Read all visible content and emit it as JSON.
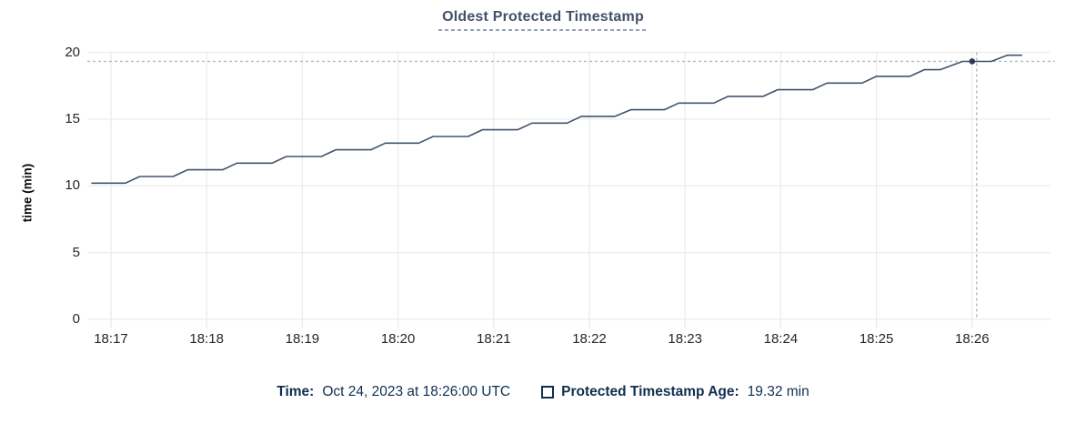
{
  "title": "Oldest Protected Timestamp",
  "y_axis": {
    "label": "time (min)",
    "ticks": [
      "20",
      "15",
      "10",
      "5",
      "0"
    ]
  },
  "x_axis": {
    "ticks": [
      "18:17",
      "18:18",
      "18:19",
      "18:20",
      "18:21",
      "18:22",
      "18:23",
      "18:24",
      "18:25",
      "18:26"
    ]
  },
  "footer": {
    "time_label": "Time:",
    "time_value": "Oct 24, 2023 at 18:26:00 UTC",
    "series_label": "Protected Timestamp Age:",
    "series_value": "19.32 min"
  },
  "colors": {
    "background": "#ffffff",
    "title": "#44506a",
    "title_underline": "#97a2b4",
    "grid": "#ececec",
    "tick_text": "#262626",
    "line": "#43536b",
    "dot": "#2b3a52",
    "crosshair": "#a9bcc7",
    "footer_text": "#0f2f50"
  },
  "chart_data": {
    "type": "line",
    "title": "Oldest Protected Timestamp",
    "xlabel": "",
    "ylabel": "time (min)",
    "ylim": [
      0,
      20
    ],
    "y_ticks": [
      0,
      5,
      10,
      15,
      20
    ],
    "x_ticks": [
      "18:17",
      "18:18",
      "18:19",
      "18:20",
      "18:21",
      "18:22",
      "18:23",
      "18:24",
      "18:25",
      "18:26"
    ],
    "x_range": [
      "18:16:48",
      "18:26:51"
    ],
    "grid": true,
    "legend_position": "bottom",
    "series": [
      {
        "name": "Protected Timestamp Age",
        "unit": "min",
        "points": [
          [
            "18:16:48",
            10.2
          ],
          [
            "18:17:09",
            10.2
          ],
          [
            "18:17:18",
            10.7
          ],
          [
            "18:17:39",
            10.7
          ],
          [
            "18:17:48",
            11.2
          ],
          [
            "18:18:10",
            11.2
          ],
          [
            "18:18:19",
            11.7
          ],
          [
            "18:18:41",
            11.7
          ],
          [
            "18:18:50",
            12.2
          ],
          [
            "18:19:12",
            12.2
          ],
          [
            "18:19:21",
            12.7
          ],
          [
            "18:19:43",
            12.7
          ],
          [
            "18:19:52",
            13.2
          ],
          [
            "18:20:13",
            13.2
          ],
          [
            "18:20:22",
            13.7
          ],
          [
            "18:20:44",
            13.7
          ],
          [
            "18:20:53",
            14.2
          ],
          [
            "18:21:15",
            14.2
          ],
          [
            "18:21:24",
            14.7
          ],
          [
            "18:21:46",
            14.7
          ],
          [
            "18:21:55",
            15.2
          ],
          [
            "18:22:16",
            15.2
          ],
          [
            "18:22:26",
            15.7
          ],
          [
            "18:22:47",
            15.7
          ],
          [
            "18:22:56",
            16.2
          ],
          [
            "18:23:18",
            16.2
          ],
          [
            "18:23:27",
            16.7
          ],
          [
            "18:23:49",
            16.7
          ],
          [
            "18:23:58",
            17.2
          ],
          [
            "18:24:20",
            17.2
          ],
          [
            "18:24:29",
            17.7
          ],
          [
            "18:24:51",
            17.7
          ],
          [
            "18:25:00",
            18.2
          ],
          [
            "18:25:21",
            18.2
          ],
          [
            "18:25:30",
            18.7
          ],
          [
            "18:25:40",
            18.7
          ],
          [
            "18:25:54",
            19.32
          ],
          [
            "18:26:12",
            19.32
          ],
          [
            "18:26:22",
            19.78
          ],
          [
            "18:26:31",
            19.78
          ]
        ]
      }
    ],
    "hover": {
      "point_time": "18:26:00",
      "value": 19.32,
      "time_display": "Oct 24, 2023 at 18:26:00 UTC",
      "value_display": "19.32 min"
    }
  }
}
